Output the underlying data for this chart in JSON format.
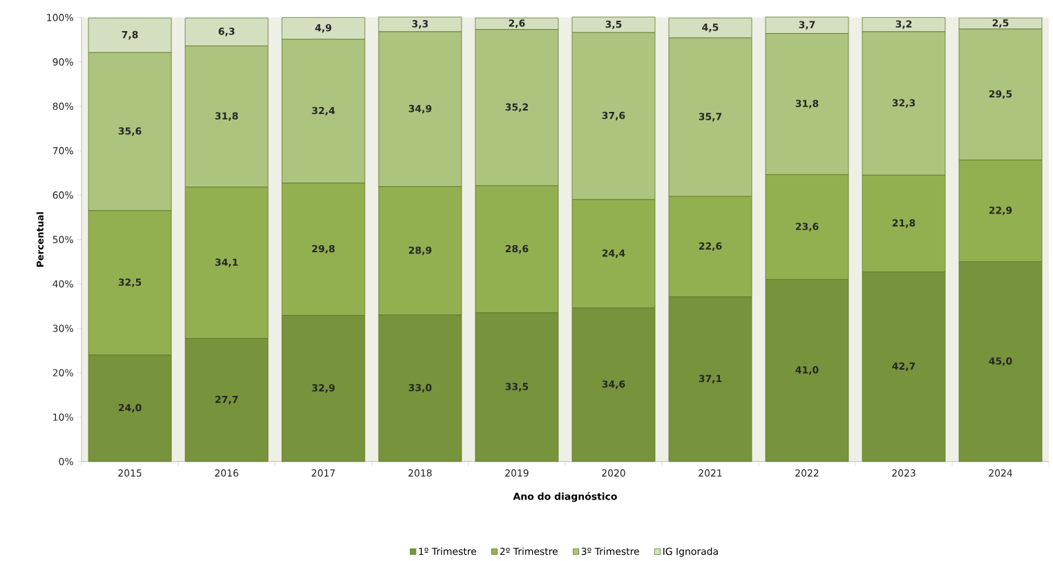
{
  "chart_data": {
    "type": "bar",
    "stacked": true,
    "xlabel": "Ano do diagnóstico",
    "ylabel": "Percentual",
    "categories": [
      "2015",
      "2016",
      "2017",
      "2018",
      "2019",
      "2020",
      "2021",
      "2022",
      "2023",
      "2024"
    ],
    "ylim": [
      0,
      100
    ],
    "yticks": [
      {
        "value": 0,
        "label": "0%"
      },
      {
        "value": 10,
        "label": "10%"
      },
      {
        "value": 20,
        "label": "20%"
      },
      {
        "value": 30,
        "label": "30%"
      },
      {
        "value": 40,
        "label": "40%"
      },
      {
        "value": 50,
        "label": "50%"
      },
      {
        "value": 60,
        "label": "60%"
      },
      {
        "value": 70,
        "label": "70%"
      },
      {
        "value": 80,
        "label": "80%"
      },
      {
        "value": 90,
        "label": "90%"
      },
      {
        "value": 100,
        "label": "100%"
      }
    ],
    "legend": "bottom",
    "grid": false,
    "series": [
      {
        "name": "1º Trimestre",
        "color": "#77933c",
        "values": [
          24.0,
          27.7,
          32.9,
          33.0,
          33.5,
          34.6,
          37.1,
          41.0,
          42.7,
          45.0
        ],
        "value_labels": [
          "24,0",
          "27,7",
          "32,9",
          "33,0",
          "33,5",
          "34,6",
          "37,1",
          "41,0",
          "42,7",
          "45,0"
        ]
      },
      {
        "name": "2º Trimestre",
        "color": "#92b050",
        "values": [
          32.5,
          34.1,
          29.8,
          28.9,
          28.6,
          24.4,
          22.6,
          23.6,
          21.8,
          22.9
        ],
        "value_labels": [
          "32,5",
          "34,1",
          "29,8",
          "28,9",
          "28,6",
          "24,4",
          "22,6",
          "23,6",
          "21,8",
          "22,9"
        ]
      },
      {
        "name": "3º Trimestre",
        "color": "#adc47f",
        "values": [
          35.6,
          31.8,
          32.4,
          34.9,
          35.2,
          37.6,
          35.7,
          31.8,
          32.3,
          29.5
        ],
        "value_labels": [
          "35,6",
          "31,8",
          "32,4",
          "34,9",
          "35,2",
          "37,6",
          "35,7",
          "31,8",
          "32,3",
          "29,5"
        ]
      },
      {
        "name": "IG Ignorada",
        "color": "#d4dfc0",
        "values": [
          7.8,
          6.3,
          4.9,
          3.3,
          2.6,
          3.5,
          4.5,
          3.7,
          3.2,
          2.5
        ],
        "value_labels": [
          "7,8",
          "6,3",
          "4,9",
          "3,3",
          "2,6",
          "3,5",
          "4,5",
          "3,7",
          "3,2",
          "2,5"
        ]
      }
    ]
  }
}
